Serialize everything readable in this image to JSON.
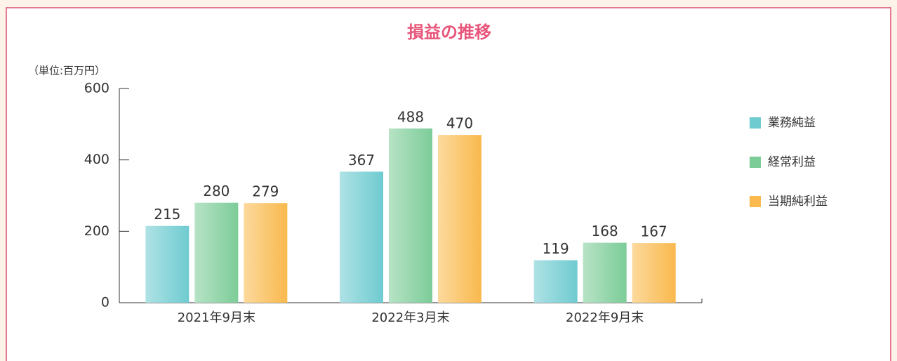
{
  "chart_data": {
    "type": "bar",
    "title": "損益の推移",
    "unit_label": "（単位:百万円）",
    "categories": [
      "2021年9月末",
      "2022年3月末",
      "2022年9月末"
    ],
    "series": [
      {
        "name": "業務純益",
        "color": "#6ecbd0",
        "values": [
          215,
          367,
          119
        ]
      },
      {
        "name": "経常利益",
        "color": "#7ccc98",
        "values": [
          280,
          488,
          168
        ]
      },
      {
        "name": "当期純利益",
        "color": "#f9b94d",
        "values": [
          279,
          470,
          167
        ]
      }
    ],
    "ylim": [
      0,
      600
    ],
    "yticks": [
      0,
      200,
      400,
      600
    ],
    "grid": false,
    "legend": "right"
  }
}
